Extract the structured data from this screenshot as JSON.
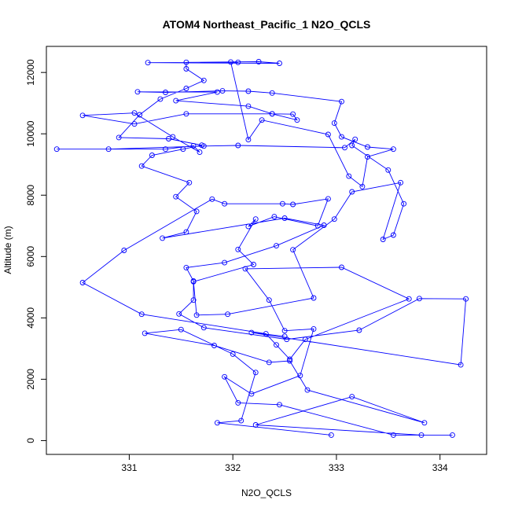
{
  "chart_data": {
    "type": "line",
    "title": "ATOM4 Northeast_Pacific_1 N2O_QCLS",
    "xlabel": "N2O_QCLS",
    "ylabel": "Altitude (m)",
    "xlim": [
      330.2,
      334.45
    ],
    "ylim": [
      -450,
      12850
    ],
    "xticks": [
      "331",
      "332",
      "333",
      "334"
    ],
    "xtick_values": [
      331,
      332,
      333,
      334
    ],
    "yticks": [
      "0",
      "2000",
      "4000",
      "6000",
      "8000",
      "10000",
      "12000"
    ],
    "ytick_values": [
      0,
      2000,
      4000,
      6000,
      8000,
      10000,
      12000
    ],
    "grid": false,
    "marker": "open-circle",
    "series_color": "#0000ff",
    "series": [
      {
        "points": [
          [
            332.95,
            180
          ],
          [
            331.85,
            580
          ],
          [
            332.08,
            650
          ],
          [
            332.22,
            2220
          ],
          [
            332.0,
            2820
          ],
          [
            331.5,
            3620
          ],
          [
            331.15,
            3500
          ],
          [
            331.82,
            3100
          ],
          [
            332.35,
            2550
          ],
          [
            332.55,
            2600
          ],
          [
            332.72,
            1650
          ],
          [
            333.85,
            580
          ],
          [
            333.15,
            1430
          ],
          [
            332.22,
            510
          ],
          [
            333.82,
            180
          ],
          [
            334.12,
            180
          ],
          [
            333.55,
            180
          ],
          [
            332.45,
            1170
          ],
          [
            332.05,
            1230
          ],
          [
            331.92,
            2080
          ],
          [
            332.18,
            1520
          ],
          [
            332.65,
            2120
          ],
          [
            332.78,
            3640
          ],
          [
            332.5,
            3580
          ],
          [
            332.35,
            4580
          ],
          [
            332.12,
            5600
          ],
          [
            333.05,
            5650
          ],
          [
            333.7,
            4620
          ],
          [
            332.7,
            3300
          ],
          [
            332.55,
            2650
          ],
          [
            332.42,
            3120
          ],
          [
            332.32,
            3480
          ],
          [
            331.12,
            4120
          ],
          [
            330.55,
            5150
          ],
          [
            330.95,
            6200
          ],
          [
            331.8,
            7870
          ],
          [
            331.92,
            7720
          ],
          [
            332.48,
            7720
          ],
          [
            332.58,
            7700
          ],
          [
            332.92,
            7880
          ],
          [
            332.82,
            7000
          ],
          [
            332.4,
            7300
          ],
          [
            332.15,
            6980
          ],
          [
            332.22,
            7220
          ],
          [
            332.05,
            6230
          ],
          [
            332.2,
            5740
          ],
          [
            331.62,
            5180
          ],
          [
            331.65,
            4090
          ],
          [
            331.95,
            4120
          ],
          [
            332.78,
            4650
          ],
          [
            332.58,
            6220
          ],
          [
            332.98,
            7220
          ],
          [
            333.15,
            8110
          ],
          [
            333.62,
            8410
          ],
          [
            333.45,
            6560
          ],
          [
            333.55,
            6700
          ],
          [
            333.65,
            7720
          ],
          [
            333.5,
            8820
          ],
          [
            333.15,
            9620
          ],
          [
            333.18,
            9820
          ],
          [
            333.08,
            9550
          ],
          [
            332.05,
            9620
          ],
          [
            331.72,
            9600
          ],
          [
            330.8,
            9500
          ],
          [
            330.3,
            9500
          ],
          [
            331.35,
            9500
          ],
          [
            331.62,
            9610
          ],
          [
            331.68,
            9400
          ],
          [
            331.42,
            9900
          ],
          [
            331.05,
            10680
          ],
          [
            330.55,
            10600
          ],
          [
            331.05,
            10320
          ],
          [
            331.55,
            10650
          ],
          [
            332.38,
            10650
          ],
          [
            332.58,
            10640
          ],
          [
            332.62,
            10450
          ],
          [
            332.38,
            10650
          ],
          [
            332.15,
            10900
          ],
          [
            331.45,
            11080
          ],
          [
            331.85,
            11360
          ],
          [
            331.08,
            11370
          ],
          [
            331.35,
            11350
          ],
          [
            331.9,
            11400
          ],
          [
            332.15,
            11390
          ],
          [
            332.38,
            11330
          ],
          [
            333.05,
            11050
          ],
          [
            332.98,
            10350
          ],
          [
            333.05,
            9900
          ],
          [
            333.3,
            9570
          ],
          [
            333.55,
            9500
          ],
          [
            333.3,
            9250
          ],
          [
            333.25,
            8280
          ],
          [
            333.12,
            8620
          ],
          [
            332.92,
            9980
          ],
          [
            332.28,
            10450
          ],
          [
            332.15,
            9810
          ],
          [
            331.98,
            12340
          ],
          [
            332.05,
            12330
          ],
          [
            331.18,
            12320
          ],
          [
            332.45,
            12300
          ],
          [
            332.25,
            12350
          ],
          [
            331.55,
            12330
          ],
          [
            331.55,
            12120
          ],
          [
            331.72,
            11740
          ],
          [
            331.55,
            11480
          ],
          [
            331.3,
            11130
          ],
          [
            331.1,
            10620
          ],
          [
            330.9,
            9880
          ],
          [
            331.38,
            9840
          ],
          [
            331.7,
            9630
          ],
          [
            331.52,
            9500
          ],
          [
            331.22,
            9300
          ],
          [
            331.12,
            8950
          ],
          [
            331.58,
            8410
          ],
          [
            331.45,
            7950
          ],
          [
            331.65,
            7470
          ],
          [
            331.55,
            6800
          ],
          [
            331.32,
            6600
          ],
          [
            332.5,
            7250
          ],
          [
            332.88,
            7020
          ],
          [
            332.42,
            6350
          ],
          [
            331.92,
            5800
          ],
          [
            331.55,
            5640
          ],
          [
            331.62,
            5200
          ],
          [
            331.62,
            4580
          ],
          [
            331.48,
            4130
          ],
          [
            331.72,
            3680
          ],
          [
            332.52,
            3300
          ],
          [
            333.22,
            3600
          ],
          [
            333.8,
            4630
          ],
          [
            334.25,
            4620
          ],
          [
            334.2,
            2470
          ],
          [
            332.18,
            3520
          ],
          [
            332.5,
            3400
          ]
        ]
      }
    ]
  }
}
